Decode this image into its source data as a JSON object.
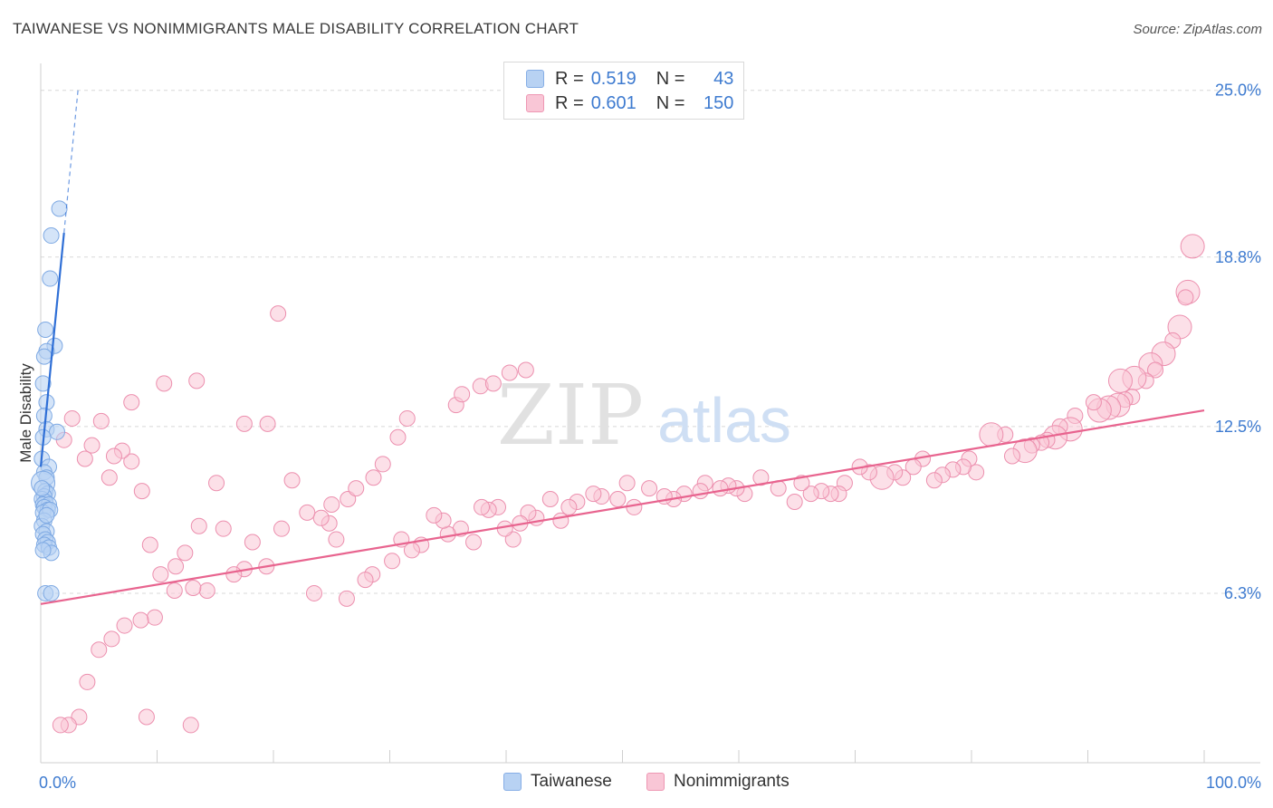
{
  "header": {
    "title": "TAIWANESE VS NONIMMIGRANTS MALE DISABILITY CORRELATION CHART",
    "source": "Source: ZipAtlas.com"
  },
  "legend": {
    "rows": [
      {
        "r_label": "R =",
        "r_value": "0.519",
        "n_label": "N =",
        "n_value": "43"
      },
      {
        "r_label": "R =",
        "r_value": "0.601",
        "n_label": "N =",
        "n_value": "150"
      }
    ],
    "bottom": [
      "Taiwanese",
      "Nonimmigrants"
    ]
  },
  "watermark": {
    "zip": "ZIP",
    "atlas": "atlas"
  },
  "colors": {
    "taiwanese_fill": "#b8d2f3",
    "taiwanese_stroke": "#7ea9e3",
    "taiwanese_line": "#2f6fd6",
    "nonimmigrants_fill": "#f9c6d6",
    "nonimmigrants_stroke": "#ec8fae",
    "nonimmigrants_line": "#e8648f",
    "tick_label": "#3e7bd0",
    "grid": "#d8d8d8"
  },
  "chart_data": {
    "type": "scatter",
    "title": "TAIWANESE VS NONIMMIGRANTS MALE DISABILITY CORRELATION CHART",
    "xlabel": "",
    "ylabel": "Male Disability",
    "xlim": [
      0,
      100
    ],
    "ylim": [
      0,
      26
    ],
    "x_tick_labels": [
      "0.0%",
      "100.0%"
    ],
    "y_ticks": [
      6.3,
      12.5,
      18.8,
      25.0
    ],
    "y_tick_labels": [
      "6.3%",
      "12.5%",
      "18.8%",
      "25.0%"
    ],
    "grid": "horizontal dashed",
    "legend_position": "top-center",
    "series": [
      {
        "name": "Taiwanese",
        "R": 0.519,
        "N": 43,
        "trend": {
          "x0": 0.0,
          "y0": 11.0,
          "x1": 2.0,
          "y1": 19.7,
          "dashed_to_x": 3.2,
          "dashed_to_y": 25.0
        },
        "points": [
          [
            1.6,
            20.6,
            1
          ],
          [
            0.9,
            19.6,
            1
          ],
          [
            0.8,
            18.0,
            1
          ],
          [
            0.4,
            16.1,
            1
          ],
          [
            1.2,
            15.5,
            1
          ],
          [
            0.5,
            15.3,
            1
          ],
          [
            0.3,
            15.1,
            1
          ],
          [
            0.2,
            14.1,
            1
          ],
          [
            0.5,
            13.4,
            1
          ],
          [
            0.3,
            12.9,
            1
          ],
          [
            0.5,
            12.4,
            1
          ],
          [
            1.4,
            12.3,
            1
          ],
          [
            0.2,
            12.1,
            1
          ],
          [
            0.1,
            11.3,
            1
          ],
          [
            0.7,
            11.0,
            1
          ],
          [
            0.3,
            10.8,
            1
          ],
          [
            0.5,
            10.6,
            1
          ],
          [
            0.2,
            10.4,
            2
          ],
          [
            0.4,
            10.1,
            1
          ],
          [
            0.6,
            10.0,
            1
          ],
          [
            0.3,
            9.9,
            1
          ],
          [
            0.1,
            9.8,
            1
          ],
          [
            0.4,
            9.7,
            1
          ],
          [
            0.2,
            9.6,
            1
          ],
          [
            0.7,
            9.6,
            1
          ],
          [
            0.3,
            9.5,
            1
          ],
          [
            0.6,
            9.4,
            1
          ],
          [
            0.2,
            9.3,
            1
          ],
          [
            0.8,
            9.4,
            1
          ],
          [
            0.3,
            9.0,
            1
          ],
          [
            0.1,
            8.8,
            1
          ],
          [
            0.5,
            8.6,
            1
          ],
          [
            0.2,
            8.5,
            1
          ],
          [
            0.4,
            8.3,
            1
          ],
          [
            0.6,
            8.2,
            1
          ],
          [
            0.3,
            8.1,
            1
          ],
          [
            0.7,
            8.0,
            1
          ],
          [
            0.9,
            7.8,
            1
          ],
          [
            0.2,
            7.9,
            1
          ],
          [
            0.4,
            6.3,
            1
          ],
          [
            0.9,
            6.3,
            1
          ],
          [
            0.1,
            10.2,
            1
          ],
          [
            0.5,
            9.2,
            1
          ]
        ]
      },
      {
        "name": "Nonimmigrants",
        "R": 0.601,
        "N": 150,
        "trend": {
          "x0": 0.0,
          "y0": 5.9,
          "x1": 100.0,
          "y1": 13.1
        },
        "points": [
          [
            99.0,
            19.2,
            2
          ],
          [
            98.6,
            17.5,
            2
          ],
          [
            98.4,
            17.3,
            1
          ],
          [
            97.9,
            16.2,
            2
          ],
          [
            97.3,
            15.7,
            1
          ],
          [
            96.5,
            15.2,
            2
          ],
          [
            95.4,
            14.8,
            2
          ],
          [
            95.8,
            14.6,
            1
          ],
          [
            95.0,
            14.2,
            1
          ],
          [
            94.0,
            14.3,
            2
          ],
          [
            92.8,
            14.2,
            2
          ],
          [
            93.8,
            13.6,
            1
          ],
          [
            93.2,
            13.5,
            1
          ],
          [
            92.6,
            13.3,
            2
          ],
          [
            91.8,
            13.2,
            2
          ],
          [
            91.0,
            13.1,
            2
          ],
          [
            90.5,
            13.4,
            1
          ],
          [
            88.9,
            12.9,
            1
          ],
          [
            88.5,
            12.4,
            2
          ],
          [
            87.6,
            12.5,
            1
          ],
          [
            87.2,
            12.1,
            2
          ],
          [
            86.5,
            12.0,
            1
          ],
          [
            86.0,
            11.9,
            1
          ],
          [
            85.2,
            11.8,
            1
          ],
          [
            84.6,
            11.6,
            2
          ],
          [
            83.5,
            11.4,
            1
          ],
          [
            82.9,
            12.2,
            1
          ],
          [
            81.7,
            12.2,
            2
          ],
          [
            79.8,
            11.3,
            1
          ],
          [
            80.4,
            10.8,
            1
          ],
          [
            79.3,
            11.0,
            1
          ],
          [
            78.4,
            10.9,
            1
          ],
          [
            77.5,
            10.7,
            1
          ],
          [
            76.8,
            10.5,
            1
          ],
          [
            75.8,
            11.3,
            1
          ],
          [
            75.0,
            11.0,
            1
          ],
          [
            74.1,
            10.6,
            1
          ],
          [
            73.4,
            10.8,
            1
          ],
          [
            72.3,
            10.6,
            2
          ],
          [
            71.2,
            10.8,
            1
          ],
          [
            70.4,
            11.0,
            1
          ],
          [
            69.1,
            10.4,
            1
          ],
          [
            68.6,
            10.0,
            1
          ],
          [
            67.9,
            10.0,
            1
          ],
          [
            67.1,
            10.1,
            1
          ],
          [
            66.2,
            10.0,
            1
          ],
          [
            65.4,
            10.4,
            1
          ],
          [
            64.8,
            9.7,
            1
          ],
          [
            63.4,
            10.2,
            1
          ],
          [
            61.9,
            10.6,
            1
          ],
          [
            60.5,
            10.0,
            1
          ],
          [
            59.8,
            10.2,
            1
          ],
          [
            59.1,
            10.3,
            1
          ],
          [
            58.4,
            10.2,
            1
          ],
          [
            57.1,
            10.4,
            1
          ],
          [
            56.7,
            10.1,
            1
          ],
          [
            55.3,
            10.0,
            1
          ],
          [
            54.4,
            9.8,
            1
          ],
          [
            53.6,
            9.9,
            1
          ],
          [
            52.3,
            10.2,
            1
          ],
          [
            51.0,
            9.5,
            1
          ],
          [
            50.4,
            10.4,
            1
          ],
          [
            49.6,
            9.8,
            1
          ],
          [
            48.2,
            9.9,
            1
          ],
          [
            47.5,
            10.0,
            1
          ],
          [
            46.1,
            9.7,
            1
          ],
          [
            45.4,
            9.5,
            1
          ],
          [
            44.7,
            9.0,
            1
          ],
          [
            43.8,
            9.8,
            1
          ],
          [
            42.6,
            9.1,
            1
          ],
          [
            41.9,
            9.3,
            1
          ],
          [
            41.2,
            8.9,
            1
          ],
          [
            40.6,
            8.3,
            1
          ],
          [
            39.9,
            8.7,
            1
          ],
          [
            39.3,
            9.5,
            1
          ],
          [
            38.5,
            9.4,
            1
          ],
          [
            37.9,
            9.5,
            1
          ],
          [
            37.2,
            8.2,
            1
          ],
          [
            36.1,
            8.7,
            1
          ],
          [
            35.0,
            8.5,
            1
          ],
          [
            34.6,
            9.0,
            1
          ],
          [
            33.8,
            9.2,
            1
          ],
          [
            32.7,
            8.1,
            1
          ],
          [
            31.9,
            7.9,
            1
          ],
          [
            31.0,
            8.3,
            1
          ],
          [
            30.2,
            7.5,
            1
          ],
          [
            28.5,
            7.0,
            1
          ],
          [
            27.9,
            6.8,
            1
          ],
          [
            26.3,
            6.1,
            1
          ],
          [
            25.4,
            8.3,
            1
          ],
          [
            24.8,
            8.9,
            1
          ],
          [
            24.1,
            9.1,
            1
          ],
          [
            22.9,
            9.3,
            1
          ],
          [
            23.5,
            6.3,
            1
          ],
          [
            21.6,
            10.5,
            1
          ],
          [
            20.7,
            8.7,
            1
          ],
          [
            19.4,
            7.3,
            1
          ],
          [
            18.2,
            8.2,
            1
          ],
          [
            17.5,
            7.2,
            1
          ],
          [
            16.6,
            7.0,
            1
          ],
          [
            15.7,
            8.7,
            1
          ],
          [
            14.3,
            6.4,
            1
          ],
          [
            13.1,
            6.5,
            1
          ],
          [
            11.6,
            7.3,
            1
          ],
          [
            10.3,
            7.0,
            1
          ],
          [
            9.4,
            8.1,
            1
          ],
          [
            8.7,
            10.1,
            1
          ],
          [
            7.8,
            11.2,
            1
          ],
          [
            7.0,
            11.6,
            1
          ],
          [
            6.3,
            11.4,
            1
          ],
          [
            5.9,
            10.6,
            1
          ],
          [
            4.4,
            11.8,
            1
          ],
          [
            3.8,
            11.3,
            1
          ],
          [
            2.7,
            12.8,
            1
          ],
          [
            2.0,
            12.0,
            1
          ],
          [
            19.5,
            12.6,
            1
          ],
          [
            17.5,
            12.6,
            1
          ],
          [
            15.1,
            10.4,
            1
          ],
          [
            13.6,
            8.8,
            1
          ],
          [
            12.4,
            7.8,
            1
          ],
          [
            11.5,
            6.4,
            1
          ],
          [
            9.8,
            5.4,
            1
          ],
          [
            8.6,
            5.3,
            1
          ],
          [
            7.2,
            5.1,
            1
          ],
          [
            6.1,
            4.6,
            1
          ],
          [
            5.0,
            4.2,
            1
          ],
          [
            4.0,
            3.0,
            1
          ],
          [
            3.3,
            1.7,
            1
          ],
          [
            2.4,
            1.4,
            1
          ],
          [
            1.7,
            1.4,
            1
          ],
          [
            12.9,
            1.4,
            1
          ],
          [
            9.1,
            1.7,
            1
          ],
          [
            20.4,
            16.7,
            1
          ],
          [
            13.4,
            14.2,
            1
          ],
          [
            10.6,
            14.1,
            1
          ],
          [
            7.8,
            13.4,
            1
          ],
          [
            5.2,
            12.7,
            1
          ],
          [
            25.0,
            9.6,
            1
          ],
          [
            26.4,
            9.8,
            1
          ],
          [
            27.1,
            10.2,
            1
          ],
          [
            28.6,
            10.6,
            1
          ],
          [
            29.4,
            11.1,
            1
          ],
          [
            30.7,
            12.1,
            1
          ],
          [
            31.5,
            12.8,
            1
          ],
          [
            35.7,
            13.3,
            1
          ],
          [
            36.2,
            13.7,
            1
          ],
          [
            37.8,
            14.0,
            1
          ],
          [
            38.9,
            14.1,
            1
          ],
          [
            40.3,
            14.5,
            1
          ],
          [
            41.7,
            14.6,
            1
          ]
        ]
      }
    ]
  }
}
